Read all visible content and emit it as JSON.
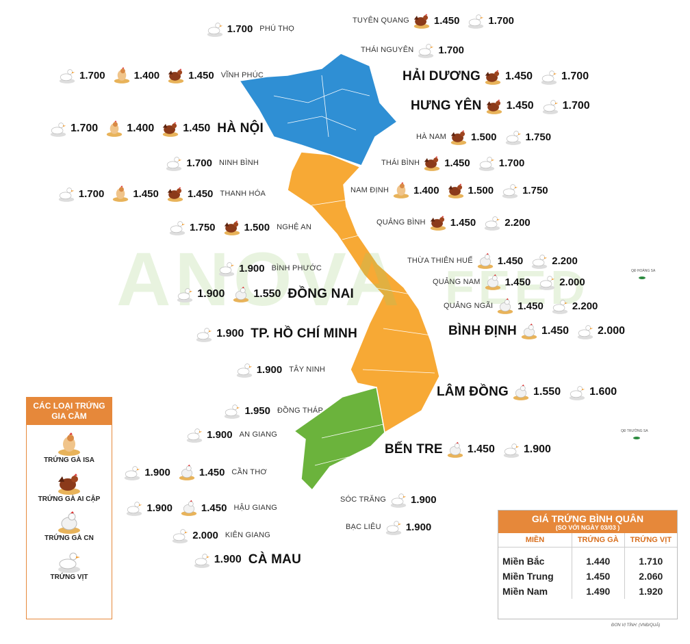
{
  "watermark": {
    "left": "ANOVA",
    "right": "FEED"
  },
  "islands": {
    "hoang_sa": "QĐ HOÀNG SA",
    "truong_sa": "QĐ TRƯỜNG SA"
  },
  "provinces": [
    {
      "name": "PHÚ THỌ",
      "vit": "1.700"
    },
    {
      "name": "TUYÊN QUANG",
      "ai_cap": "1.450",
      "vit": "1.700"
    },
    {
      "name": "THÁI NGUYÊN",
      "vit": "1.700"
    },
    {
      "name": "VĨNH PHÚC",
      "vit": "1.700",
      "isa": "1.400",
      "ai_cap": "1.450"
    },
    {
      "name": "HẢI DƯƠNG",
      "ai_cap": "1.450",
      "vit": "1.700"
    },
    {
      "name": "HƯNG YÊN",
      "ai_cap": "1.450",
      "vit": "1.700"
    },
    {
      "name": "HÀ NỘI",
      "vit": "1.700",
      "isa": "1.400",
      "ai_cap": "1.450"
    },
    {
      "name": "HÀ NAM",
      "ai_cap": "1.500",
      "vit": "1.750"
    },
    {
      "name": "NINH BÌNH",
      "vit": "1.700"
    },
    {
      "name": "THÁI BÌNH",
      "ai_cap": "1.450",
      "vit": "1.700"
    },
    {
      "name": "THANH HÓA",
      "vit": "1.700",
      "isa": "1.450",
      "ai_cap": "1.450"
    },
    {
      "name": "NAM ĐỊNH",
      "isa": "1.400",
      "ai_cap": "1.500",
      "vit": "1.750"
    },
    {
      "name": "NGHỆ AN",
      "vit": "1.750",
      "ai_cap": "1.500"
    },
    {
      "name": "QUẢNG BÌNH",
      "ai_cap": "1.450",
      "vit": "2.200"
    },
    {
      "name": "BÌNH PHƯỚC",
      "vit": "1.900"
    },
    {
      "name": "THỪA THIÊN HUẾ",
      "cn": "1.450",
      "vit": "2.200"
    },
    {
      "name": "QUẢNG NAM",
      "cn": "1.450",
      "vit": "2.000"
    },
    {
      "name": "ĐỒNG NAI",
      "vit": "1.900",
      "cn": "1.550"
    },
    {
      "name": "QUẢNG NGÃI",
      "cn": "1.450",
      "vit": "2.200"
    },
    {
      "name": "TP. HỒ CHÍ MINH",
      "vit": "1.900"
    },
    {
      "name": "BÌNH ĐỊNH",
      "cn": "1.450",
      "vit": "2.000"
    },
    {
      "name": "TÂY NINH",
      "vit": "1.900"
    },
    {
      "name": "LÂM ĐỒNG",
      "cn": "1.550",
      "vit": "1.600"
    },
    {
      "name": "ĐỒNG THÁP",
      "vit": "1.950"
    },
    {
      "name": "AN GIANG",
      "vit": "1.900"
    },
    {
      "name": "BẾN TRE",
      "cn": "1.450",
      "vit": "1.900"
    },
    {
      "name": "CẦN THƠ",
      "vit": "1.900",
      "cn": "1.450"
    },
    {
      "name": "SÓC TRĂNG",
      "vit": "1.900"
    },
    {
      "name": "HẬU GIANG",
      "vit": "1.900",
      "cn": "1.450"
    },
    {
      "name": "BẠC LIÊU",
      "vit": "1.900"
    },
    {
      "name": "KIÊN GIANG",
      "vit": "2.000"
    },
    {
      "name": "CÀ MAU",
      "vit": "1.900"
    }
  ],
  "legend": {
    "title": "CÁC LOẠI TRỨNG GIA CẦM",
    "items": [
      "TRỨNG GÀ ISA",
      "TRỨNG GÀ AI CẬP",
      "TRỨNG GÀ CN",
      "TRỨNG VỊT"
    ]
  },
  "summary": {
    "title": "GIÁ TRỨNG BÌNH QUÂN",
    "subtitle": "(SO VỚI NGÀY  03/03 )",
    "columns": [
      "MIỀN",
      "TRỨNG GÀ",
      "TRỨNG VỊT"
    ],
    "rows": [
      [
        "Miền Bắc",
        "1.440",
        "1.710"
      ],
      [
        "Miền Trung",
        "1.450",
        "2.060"
      ],
      [
        "Miền Nam",
        "1.490",
        "1.920"
      ]
    ]
  },
  "unit_note": "ĐƠN VỊ TÍNH: (VNĐ/QUẢ)"
}
